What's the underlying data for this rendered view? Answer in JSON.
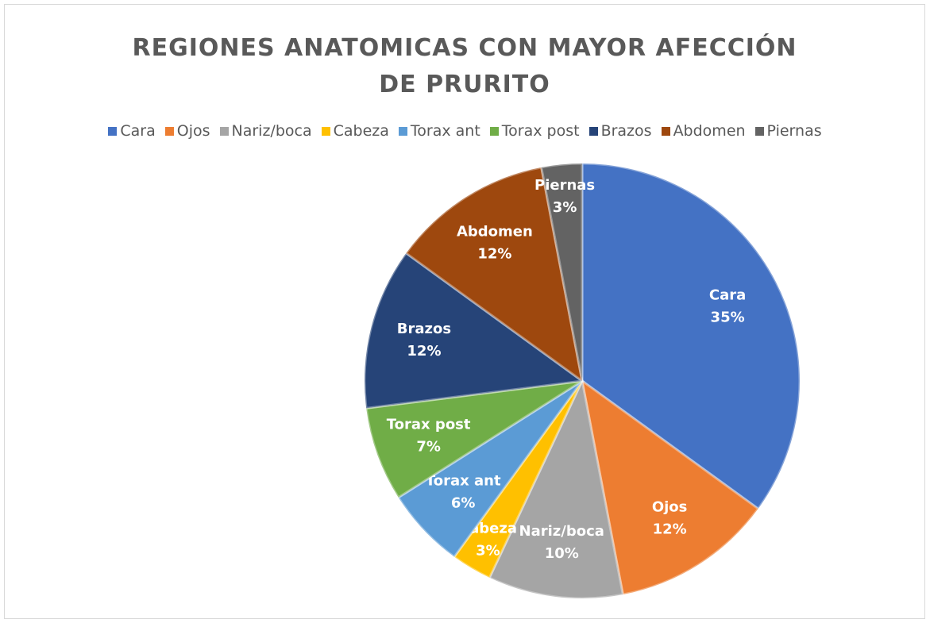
{
  "chart_data": {
    "type": "pie",
    "title": "REGIONES ANATOMICAS CON MAYOR AFECCIÓN DE PRURITO",
    "categories": [
      "Cara",
      "Ojos",
      "Nariz/boca",
      "Cabeza",
      "Torax ant",
      "Torax post",
      "Brazos",
      "Abdomen",
      "Piernas"
    ],
    "values": [
      35,
      12,
      10,
      3,
      6,
      7,
      12,
      12,
      3
    ],
    "value_labels": [
      "35%",
      "12%",
      "10%",
      "3%",
      "6%",
      "7%",
      "12%",
      "12%",
      "3%"
    ],
    "colors": [
      "#4472c4",
      "#ed7d31",
      "#a5a5a5",
      "#ffc000",
      "#5b9bd5",
      "#70ad47",
      "#264478",
      "#9e480e",
      "#636363"
    ],
    "legend": "top"
  }
}
